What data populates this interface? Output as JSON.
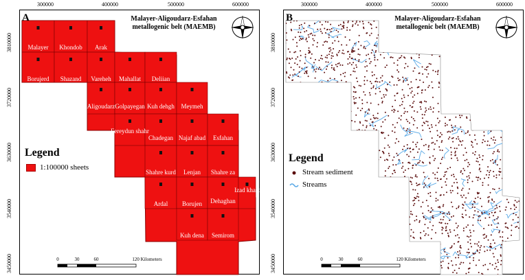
{
  "panel_a": {
    "letter": "A",
    "title_line1": "Malayer-Aligoudarz-Esfahan",
    "title_line2": "metallogenic belt (MAEMB)",
    "legend_title": "Legend",
    "legend_sheets": "1:100000 sheets",
    "sheets": [
      "Malayer",
      "Khondob",
      "Arak",
      "Borujerd",
      "Shazand",
      "Vareheh",
      "Mahallat",
      "Deliian",
      "Aligoudarz",
      "Golpayegan",
      "Kuh dehgh",
      "Meymeh",
      "Fereydun shahr",
      "Chadegan",
      "Najaf abad",
      "Esfahan",
      "Shahre kurd",
      "Lenjan",
      "Shahre za",
      "Ardal",
      "Borujen",
      "Dehaghan",
      "Izad khast",
      "Kuh dena",
      "Semirom"
    ],
    "scale_ticks": [
      "0",
      "30",
      "60",
      "120 Kilometers"
    ]
  },
  "panel_b": {
    "letter": "B",
    "title_line1": "Malayer-Aligoudarz-Esfahan",
    "title_line2": "metallogenic belt (MAEMB)",
    "legend_title": "Legend",
    "legend_sediment": "Stream sediment",
    "legend_streams": "Streams",
    "scale_ticks": [
      "0",
      "30",
      "60",
      "120 Kilometers"
    ]
  },
  "axes": {
    "x_ticks": [
      "300000",
      "400000",
      "500000",
      "600000"
    ],
    "y_ticks": [
      "3810000",
      "3720000",
      "3630000",
      "3540000",
      "3450000"
    ]
  },
  "colors": {
    "sheet_fill": "#ee1111",
    "sediment": "#5a0d0d",
    "streams": "#5aa9e6"
  },
  "icons": {
    "north_arrow": "compass-rose-icon"
  }
}
